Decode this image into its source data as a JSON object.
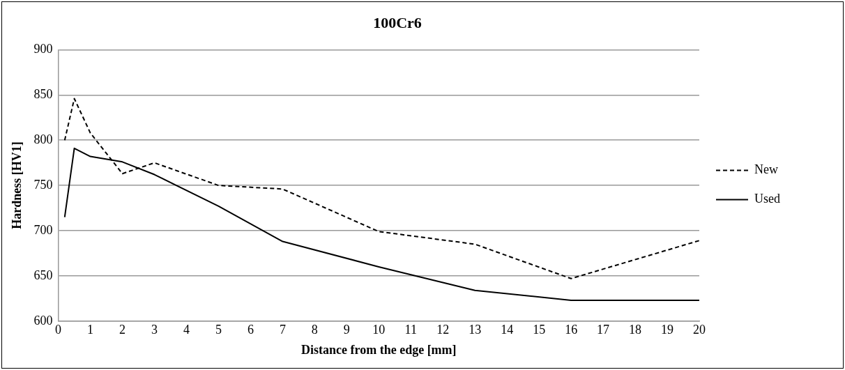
{
  "chart_data": {
    "type": "line",
    "title": "100Cr6",
    "xlabel": "Distance from the edge [mm]",
    "ylabel": "Hardness [HV1]",
    "x": [
      0.2,
      0.5,
      1,
      2,
      3,
      5,
      7,
      10,
      13,
      16,
      20
    ],
    "series": [
      {
        "name": "New",
        "color": "#000000",
        "line_style": "dashed",
        "values": [
          800,
          846,
          808,
          763,
          775,
          750,
          746,
          699,
          685,
          647,
          689
        ]
      },
      {
        "name": "Used",
        "color": "#000000",
        "line_style": "solid",
        "values": [
          715,
          791,
          782,
          776,
          762,
          727,
          688,
          660,
          634,
          623,
          623
        ]
      }
    ],
    "xlim": [
      0,
      20
    ],
    "xticks": [
      0,
      1,
      2,
      3,
      4,
      5,
      6,
      7,
      8,
      9,
      10,
      11,
      12,
      13,
      14,
      15,
      16,
      17,
      18,
      19,
      20
    ],
    "ylim": [
      600,
      900
    ],
    "yticks": [
      600,
      650,
      700,
      750,
      800,
      850,
      900
    ],
    "grid": "y",
    "legend": "right",
    "marker": "none"
  }
}
